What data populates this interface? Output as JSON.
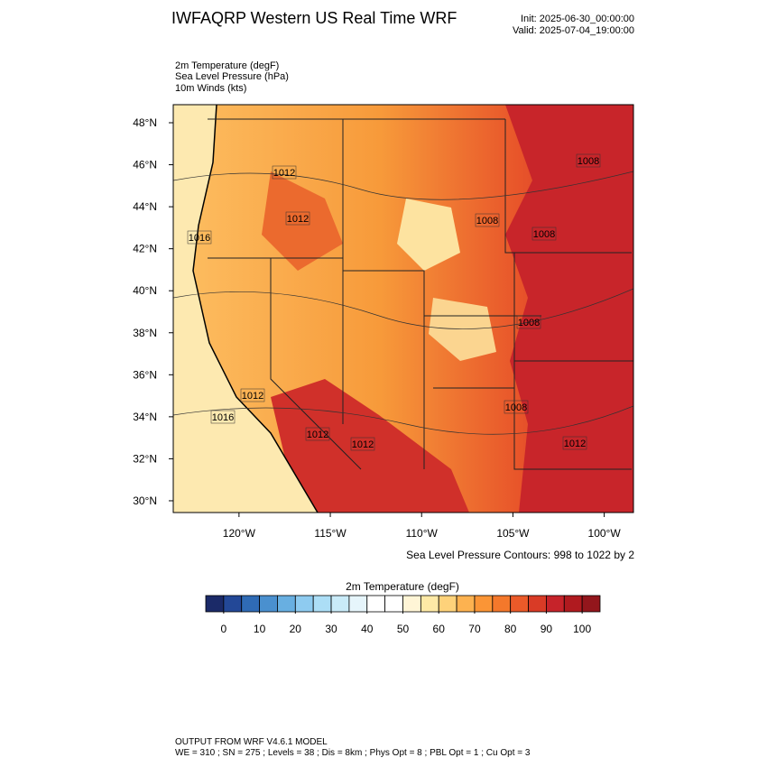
{
  "header": {
    "title": "IWFAQRP Western US Real Time WRF",
    "init": "Init: 2025-06-30_00:00:00",
    "valid": "Valid: 2025-07-04_19:00:00"
  },
  "fields": [
    "2m Temperature   (degF)",
    "Sea Level Pressure   (hPa)",
    "10m Winds   (kts)"
  ],
  "map": {
    "xlim": [
      -123.6,
      -98.4
    ],
    "ylim": [
      29.44,
      48.86
    ],
    "xticks": [
      {
        "value": -120,
        "label": "120°W"
      },
      {
        "value": -115,
        "label": "115°W"
      },
      {
        "value": -110,
        "label": "110°W"
      },
      {
        "value": -105,
        "label": "105°W"
      },
      {
        "value": -100,
        "label": "100°W"
      }
    ],
    "yticks": [
      {
        "value": 30,
        "label": "30°N"
      },
      {
        "value": 32,
        "label": "32°N"
      },
      {
        "value": 34,
        "label": "34°N"
      },
      {
        "value": 36,
        "label": "36°N"
      },
      {
        "value": 38,
        "label": "38°N"
      },
      {
        "value": 40,
        "label": "40°N"
      },
      {
        "value": 42,
        "label": "42°N"
      },
      {
        "value": 44,
        "label": "44°N"
      },
      {
        "value": 46,
        "label": "46°N"
      },
      {
        "value": 48,
        "label": "48°N"
      }
    ],
    "contour_labels": [
      "1012",
      "1012",
      "1016",
      "1008",
      "1008",
      "1008",
      "1008",
      "1012",
      "1016",
      "1008",
      "1012",
      "1012",
      "1012"
    ],
    "contour_note": "Sea Level Pressure Contours: 998 to 1022 by 2"
  },
  "colorbar": {
    "title": "2m Temperature  (degF)",
    "xlim": [
      -5,
      105
    ],
    "xticks": [
      0,
      10,
      20,
      30,
      40,
      50,
      60,
      70,
      80,
      90,
      100
    ],
    "colors": [
      "#1b2a68",
      "#234897",
      "#2f6bb5",
      "#4a90cf",
      "#68afe1",
      "#8ecbf0",
      "#acdef6",
      "#c9ebf8",
      "#e6f5fb",
      "#ffffff",
      "#ffffff",
      "#fff5d6",
      "#fee9a6",
      "#fed27a",
      "#fdb250",
      "#fb9536",
      "#f4782b",
      "#eb5a29",
      "#d93b26",
      "#c6232a",
      "#b01a1f",
      "#93161c"
    ]
  },
  "footer": {
    "line1": "OUTPUT FROM WRF V4.6.1 MODEL",
    "line2": "WE = 310 ; SN = 275 ; Levels = 38 ; Dis = 8km ; Phys Opt = 8 ; PBL Opt = 1 ; Cu Opt = 3"
  }
}
